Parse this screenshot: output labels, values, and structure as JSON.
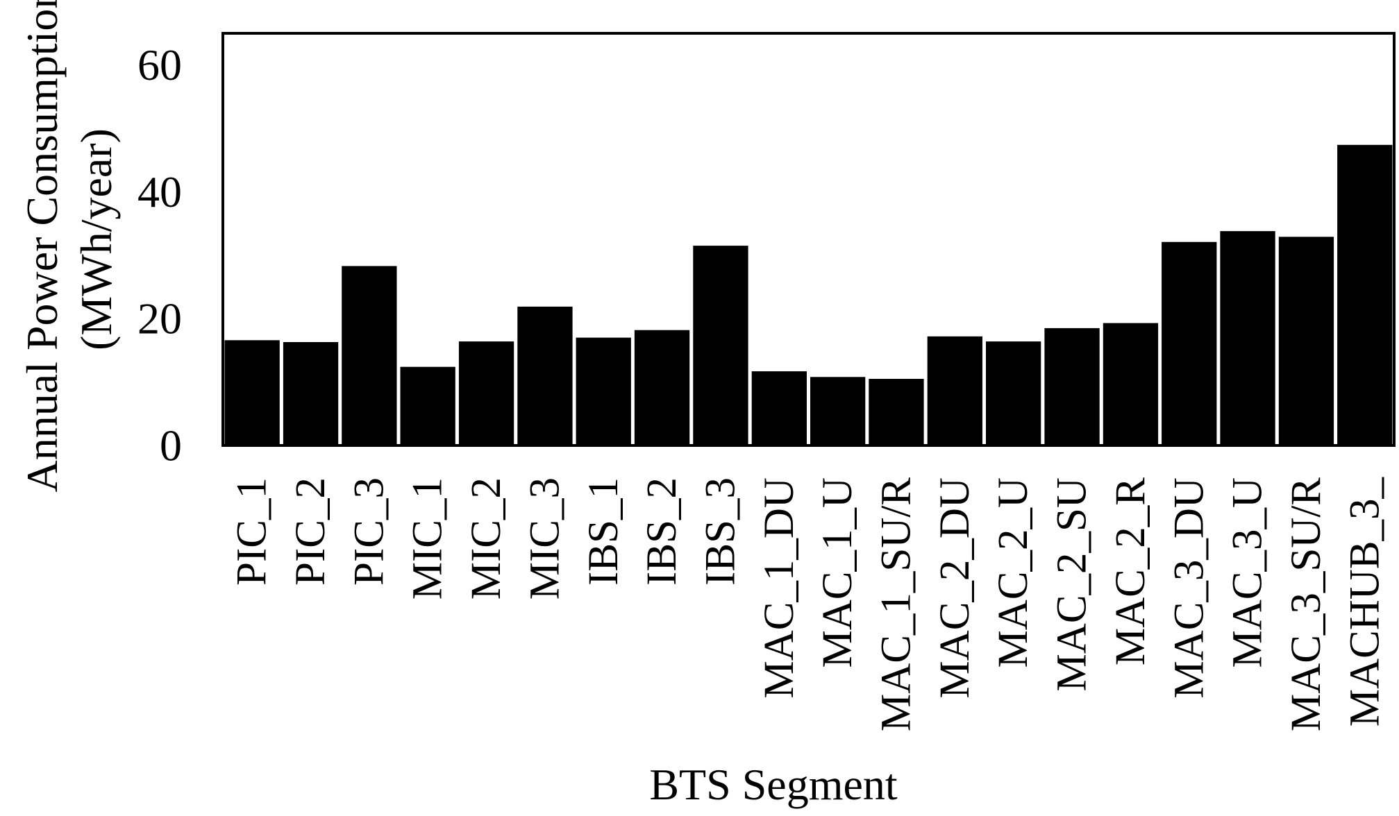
{
  "chart_data": {
    "type": "bar",
    "categories": [
      "PIC_1",
      "PIC_2",
      "PIC_3",
      "MIC_1",
      "MIC_2",
      "MIC_3",
      "IBS_1",
      "IBS_2",
      "IBS_3",
      "MAC_1_DU",
      "MAC_1_U",
      "MAC_1_SU/R",
      "MAC_2_DU",
      "MAC_2_U",
      "MAC_2_SU",
      "MAC_2_R",
      "MAC_3_DU",
      "MAC_3_U",
      "MAC_3_SU/R",
      "MACHUB_3_"
    ],
    "values": [
      16.6,
      16.3,
      28.3,
      12.4,
      16.4,
      21.9,
      17.0,
      18.2,
      31.5,
      11.7,
      10.8,
      10.5,
      17.2,
      16.4,
      18.5,
      19.3,
      32.1,
      33.8,
      32.9,
      47.4
    ],
    "ylabel_line1": "Annual Power Consumption",
    "ylabel_line2": "(MWh/year)",
    "xlabel": "BTS Segment",
    "yticks": [
      0,
      20,
      40,
      60
    ],
    "ylim": [
      0,
      65
    ],
    "bar_color": "#000000",
    "grid": false,
    "legend": "none"
  }
}
